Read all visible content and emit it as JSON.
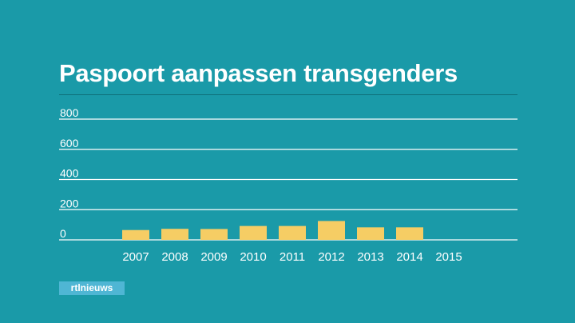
{
  "title": "Paspoort aanpassen transgenders",
  "brand": {
    "logo_text": "rtlnieuws"
  },
  "colors": {
    "background": "#1a9aa8",
    "bar": "#f6cd64",
    "gridline": "#ffffff",
    "text": "#ffffff"
  },
  "chart_data": {
    "type": "bar",
    "categories": [
      "2007",
      "2008",
      "2009",
      "2010",
      "2011",
      "2012",
      "2013",
      "2014",
      "2015"
    ],
    "values": [
      65,
      73,
      72,
      92,
      92,
      125,
      83,
      83,
      null
    ],
    "ylim": [
      0,
      800
    ],
    "yticks": [
      0,
      200,
      400,
      600,
      800
    ],
    "grid": true,
    "legend": "none"
  }
}
